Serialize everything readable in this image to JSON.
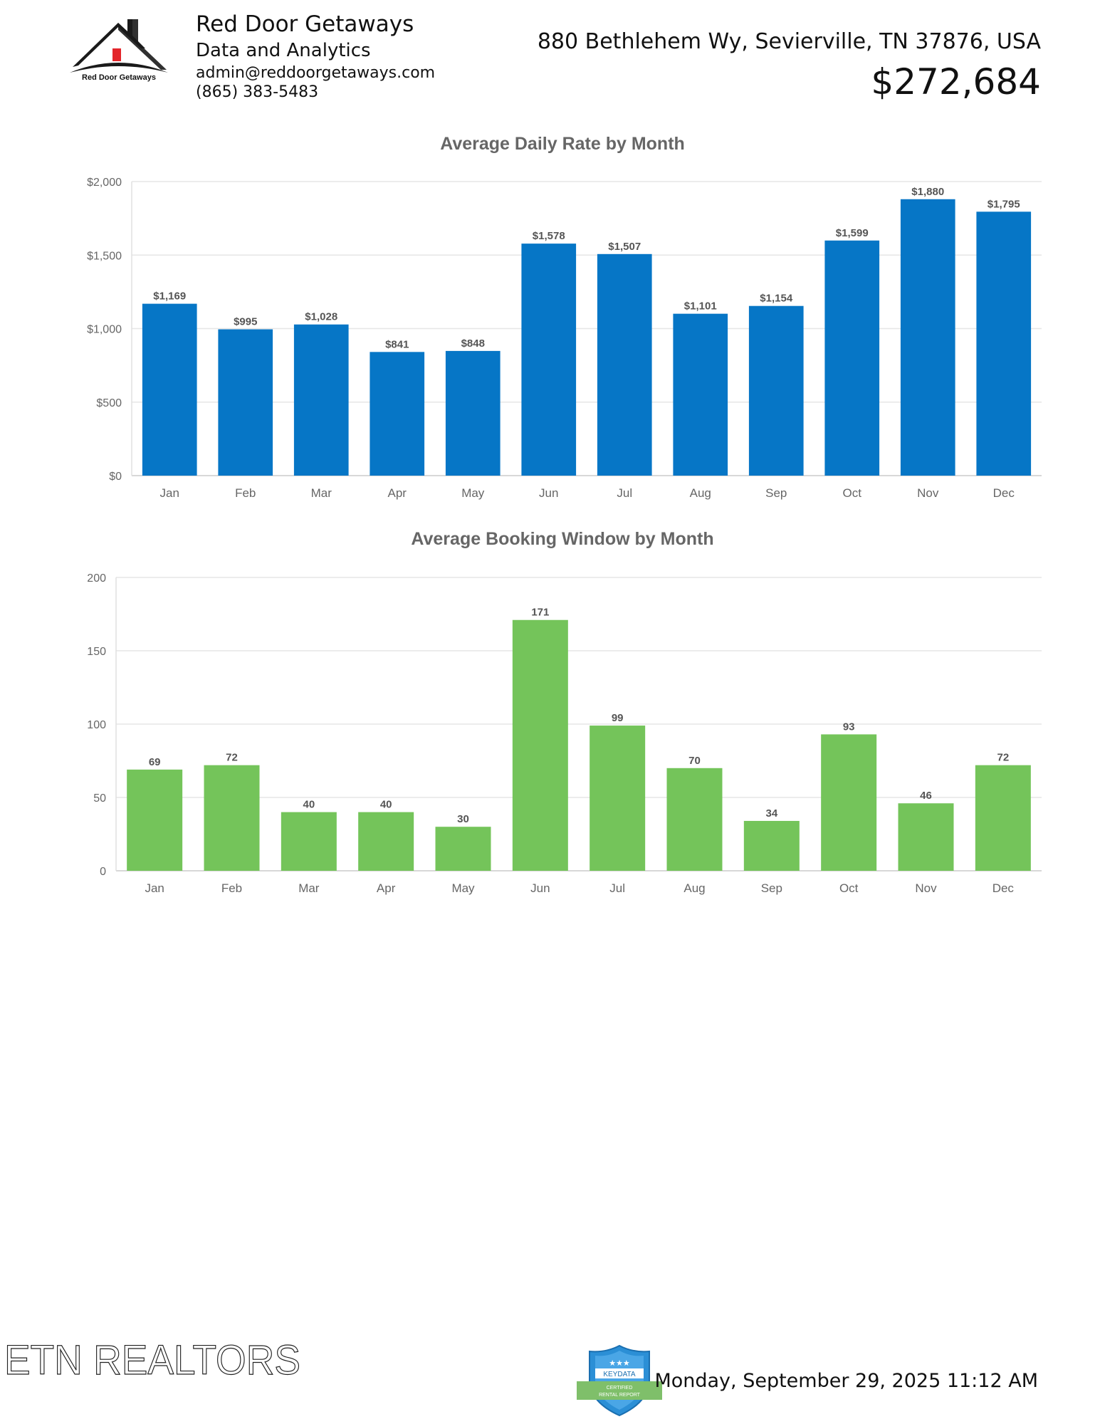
{
  "header": {
    "company": "Red Door Getaways",
    "subtitle": "Data and Analytics",
    "email": "admin@reddoorgetaways.com",
    "phone": "(865) 383-5483",
    "logo_text": "Red Door Getaways",
    "address": "880 Bethlehem Wy, Sevierville, TN 37876, USA",
    "price": "$272,684"
  },
  "colors": {
    "adr_bar": "#0676c6",
    "booking_bar": "#74c45a",
    "logo_door": "#e3262b"
  },
  "chart_data": [
    {
      "type": "bar",
      "title": "Average Daily Rate by Month",
      "categories": [
        "Jan",
        "Feb",
        "Mar",
        "Apr",
        "May",
        "Jun",
        "Jul",
        "Aug",
        "Sep",
        "Oct",
        "Nov",
        "Dec"
      ],
      "values": [
        1169,
        995,
        1028,
        841,
        848,
        1578,
        1507,
        1101,
        1154,
        1599,
        1880,
        1795
      ],
      "labels": [
        "$1,169",
        "$995",
        "$1,028",
        "$841",
        "$848",
        "$1,578",
        "$1,507",
        "$1,101",
        "$1,154",
        "$1,599",
        "$1,880",
        "$1,795"
      ],
      "yticks": [
        "$0",
        "$500",
        "$1,000",
        "$1,500",
        "$2,000"
      ],
      "ylim": [
        0,
        2000
      ],
      "grid": true
    },
    {
      "type": "bar",
      "title": "Average Booking Window by Month",
      "categories": [
        "Jan",
        "Feb",
        "Mar",
        "Apr",
        "May",
        "Jun",
        "Jul",
        "Aug",
        "Sep",
        "Oct",
        "Nov",
        "Dec"
      ],
      "values": [
        69,
        72,
        40,
        40,
        30,
        171,
        99,
        70,
        34,
        93,
        46,
        72
      ],
      "labels": [
        "69",
        "72",
        "40",
        "40",
        "30",
        "171",
        "99",
        "70",
        "34",
        "93",
        "46",
        "72"
      ],
      "yticks": [
        "0",
        "50",
        "100",
        "150",
        "200"
      ],
      "ylim": [
        0,
        200
      ],
      "grid": true
    }
  ],
  "footer": {
    "brand": "ETN REALTORS",
    "badge_text": "KEYDATA",
    "badge_ribbon": "CERTIFIED RENTAL REPORT",
    "datetime": "Monday, September 29, 2025 11:12 AM"
  }
}
